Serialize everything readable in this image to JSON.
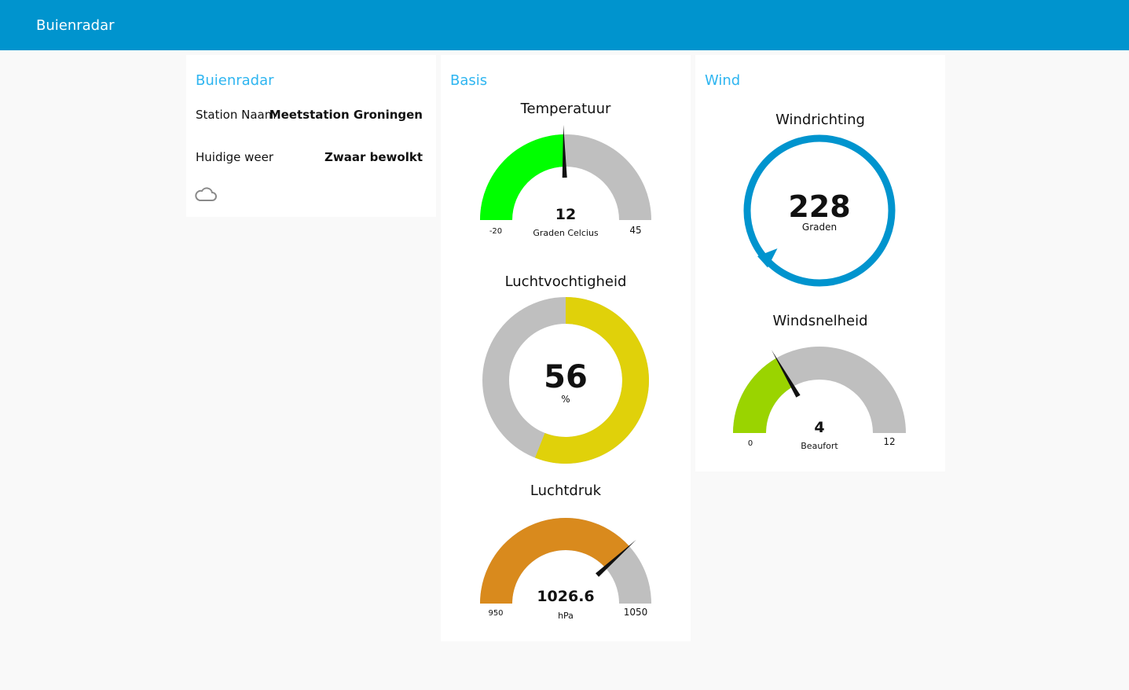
{
  "header": {
    "title": "Buienradar"
  },
  "cards": {
    "station": {
      "title": "Buienradar",
      "rows": [
        {
          "label": "Station Naam",
          "value": "Meetstation Groningen"
        },
        {
          "label": "Huidige weer",
          "value": "Zwaar bewolkt"
        }
      ],
      "weather_icon": "cloud-icon"
    },
    "basis": {
      "title": "Basis",
      "temperature": {
        "title": "Temperatuur",
        "value": 12,
        "value_text": "12",
        "unit": "Graden Celcius",
        "min": -20,
        "min_text": "-20",
        "max": 45,
        "max_text": "45",
        "color": "#00ff00"
      },
      "humidity": {
        "title": "Luchtvochtigheid",
        "value": 56,
        "value_text": "56",
        "unit": "%",
        "min": 0,
        "max": 100,
        "color": "#e0d10a"
      },
      "pressure": {
        "title": "Luchtdruk",
        "value": 1026.6,
        "value_text": "1026.6",
        "unit": "hPa",
        "min": 950,
        "min_text": "950",
        "max": 1050,
        "max_text": "1050",
        "color": "#d98a1d"
      }
    },
    "wind": {
      "title": "Wind",
      "direction": {
        "title": "Windrichting",
        "value": 228,
        "value_text": "228",
        "unit": "Graden",
        "color": "#0094ce"
      },
      "speed": {
        "title": "Windsnelheid",
        "value": 4,
        "value_text": "4",
        "unit": "Beaufort",
        "min": 0,
        "min_text": "0",
        "max": 12,
        "max_text": "12",
        "color": "#9ad400"
      }
    }
  },
  "track_color": "#bfbfbf"
}
